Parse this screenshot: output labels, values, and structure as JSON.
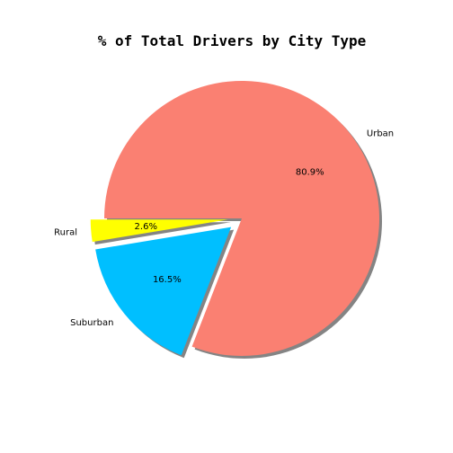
{
  "chart_data": {
    "type": "pie",
    "title": "% of Total Drivers by City Type",
    "slices": [
      {
        "label": "Rural",
        "value": 2.6,
        "pct_label": "2.6%",
        "color": "#ffff00",
        "explode": 0.1
      },
      {
        "label": "Suburban",
        "value": 16.5,
        "pct_label": "16.5%",
        "color": "#00bfff",
        "explode": 0.1
      },
      {
        "label": "Urban",
        "value": 80.9,
        "pct_label": "80.9%",
        "color": "#fa8072",
        "explode": 0.0
      }
    ],
    "shadow": true
  }
}
